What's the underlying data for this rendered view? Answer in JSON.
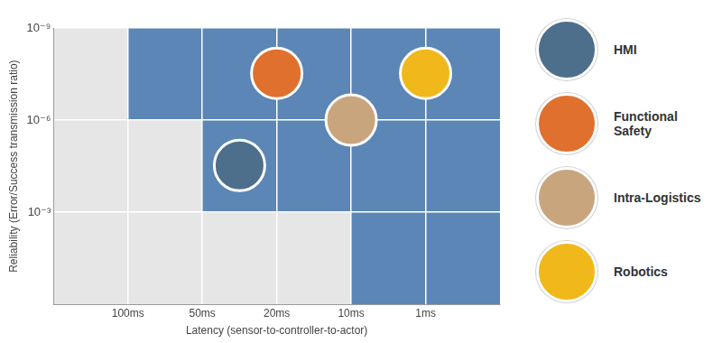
{
  "chart_data": {
    "type": "scatter",
    "x_label": "Latency (sensor-to-controller-to-actor)",
    "y_label": "Reliability (Error/Success transmission ratio)",
    "xlim": [
      0,
      6
    ],
    "xticks": [
      {
        "value": 1,
        "label": "100ms"
      },
      {
        "value": 2,
        "label": "50ms"
      },
      {
        "value": 3,
        "label": "20ms"
      },
      {
        "value": 4,
        "label": "10ms"
      },
      {
        "value": 5,
        "label": "1ms"
      }
    ],
    "ylim": [
      1,
      1e-09
    ],
    "yticks": [
      {
        "value": 1e-09,
        "label": "10⁻⁹"
      },
      {
        "value": 1e-06,
        "label": "10⁻⁶"
      },
      {
        "value": 0.001,
        "label": "10⁻³"
      }
    ],
    "log": "y",
    "grid": true,
    "legend": "right",
    "regions": {
      "color": "#5b86b6",
      "areas": [
        {
          "x": [
            1,
            6
          ],
          "y": [
            1e-09,
            1e-06
          ]
        },
        {
          "x": [
            2,
            6
          ],
          "y": [
            1e-06,
            0.001
          ]
        },
        {
          "x": [
            4,
            6
          ],
          "y": [
            0.001,
            1
          ]
        }
      ]
    },
    "series": [
      {
        "name": "HMI",
        "color": "#4d6f8c",
        "x": [
          2.5
        ],
        "values": [
          3e-05
        ]
      },
      {
        "name": "Functional Safety",
        "color": "#e0702e",
        "x": [
          3
        ],
        "values": [
          3e-08
        ]
      },
      {
        "name": "Intra-Logistics",
        "color": "#c9a57e",
        "x": [
          4
        ],
        "values": [
          1e-06
        ]
      },
      {
        "name": "Robotics",
        "color": "#f0b81a",
        "x": [
          5
        ],
        "values": [
          3e-08
        ]
      }
    ]
  }
}
